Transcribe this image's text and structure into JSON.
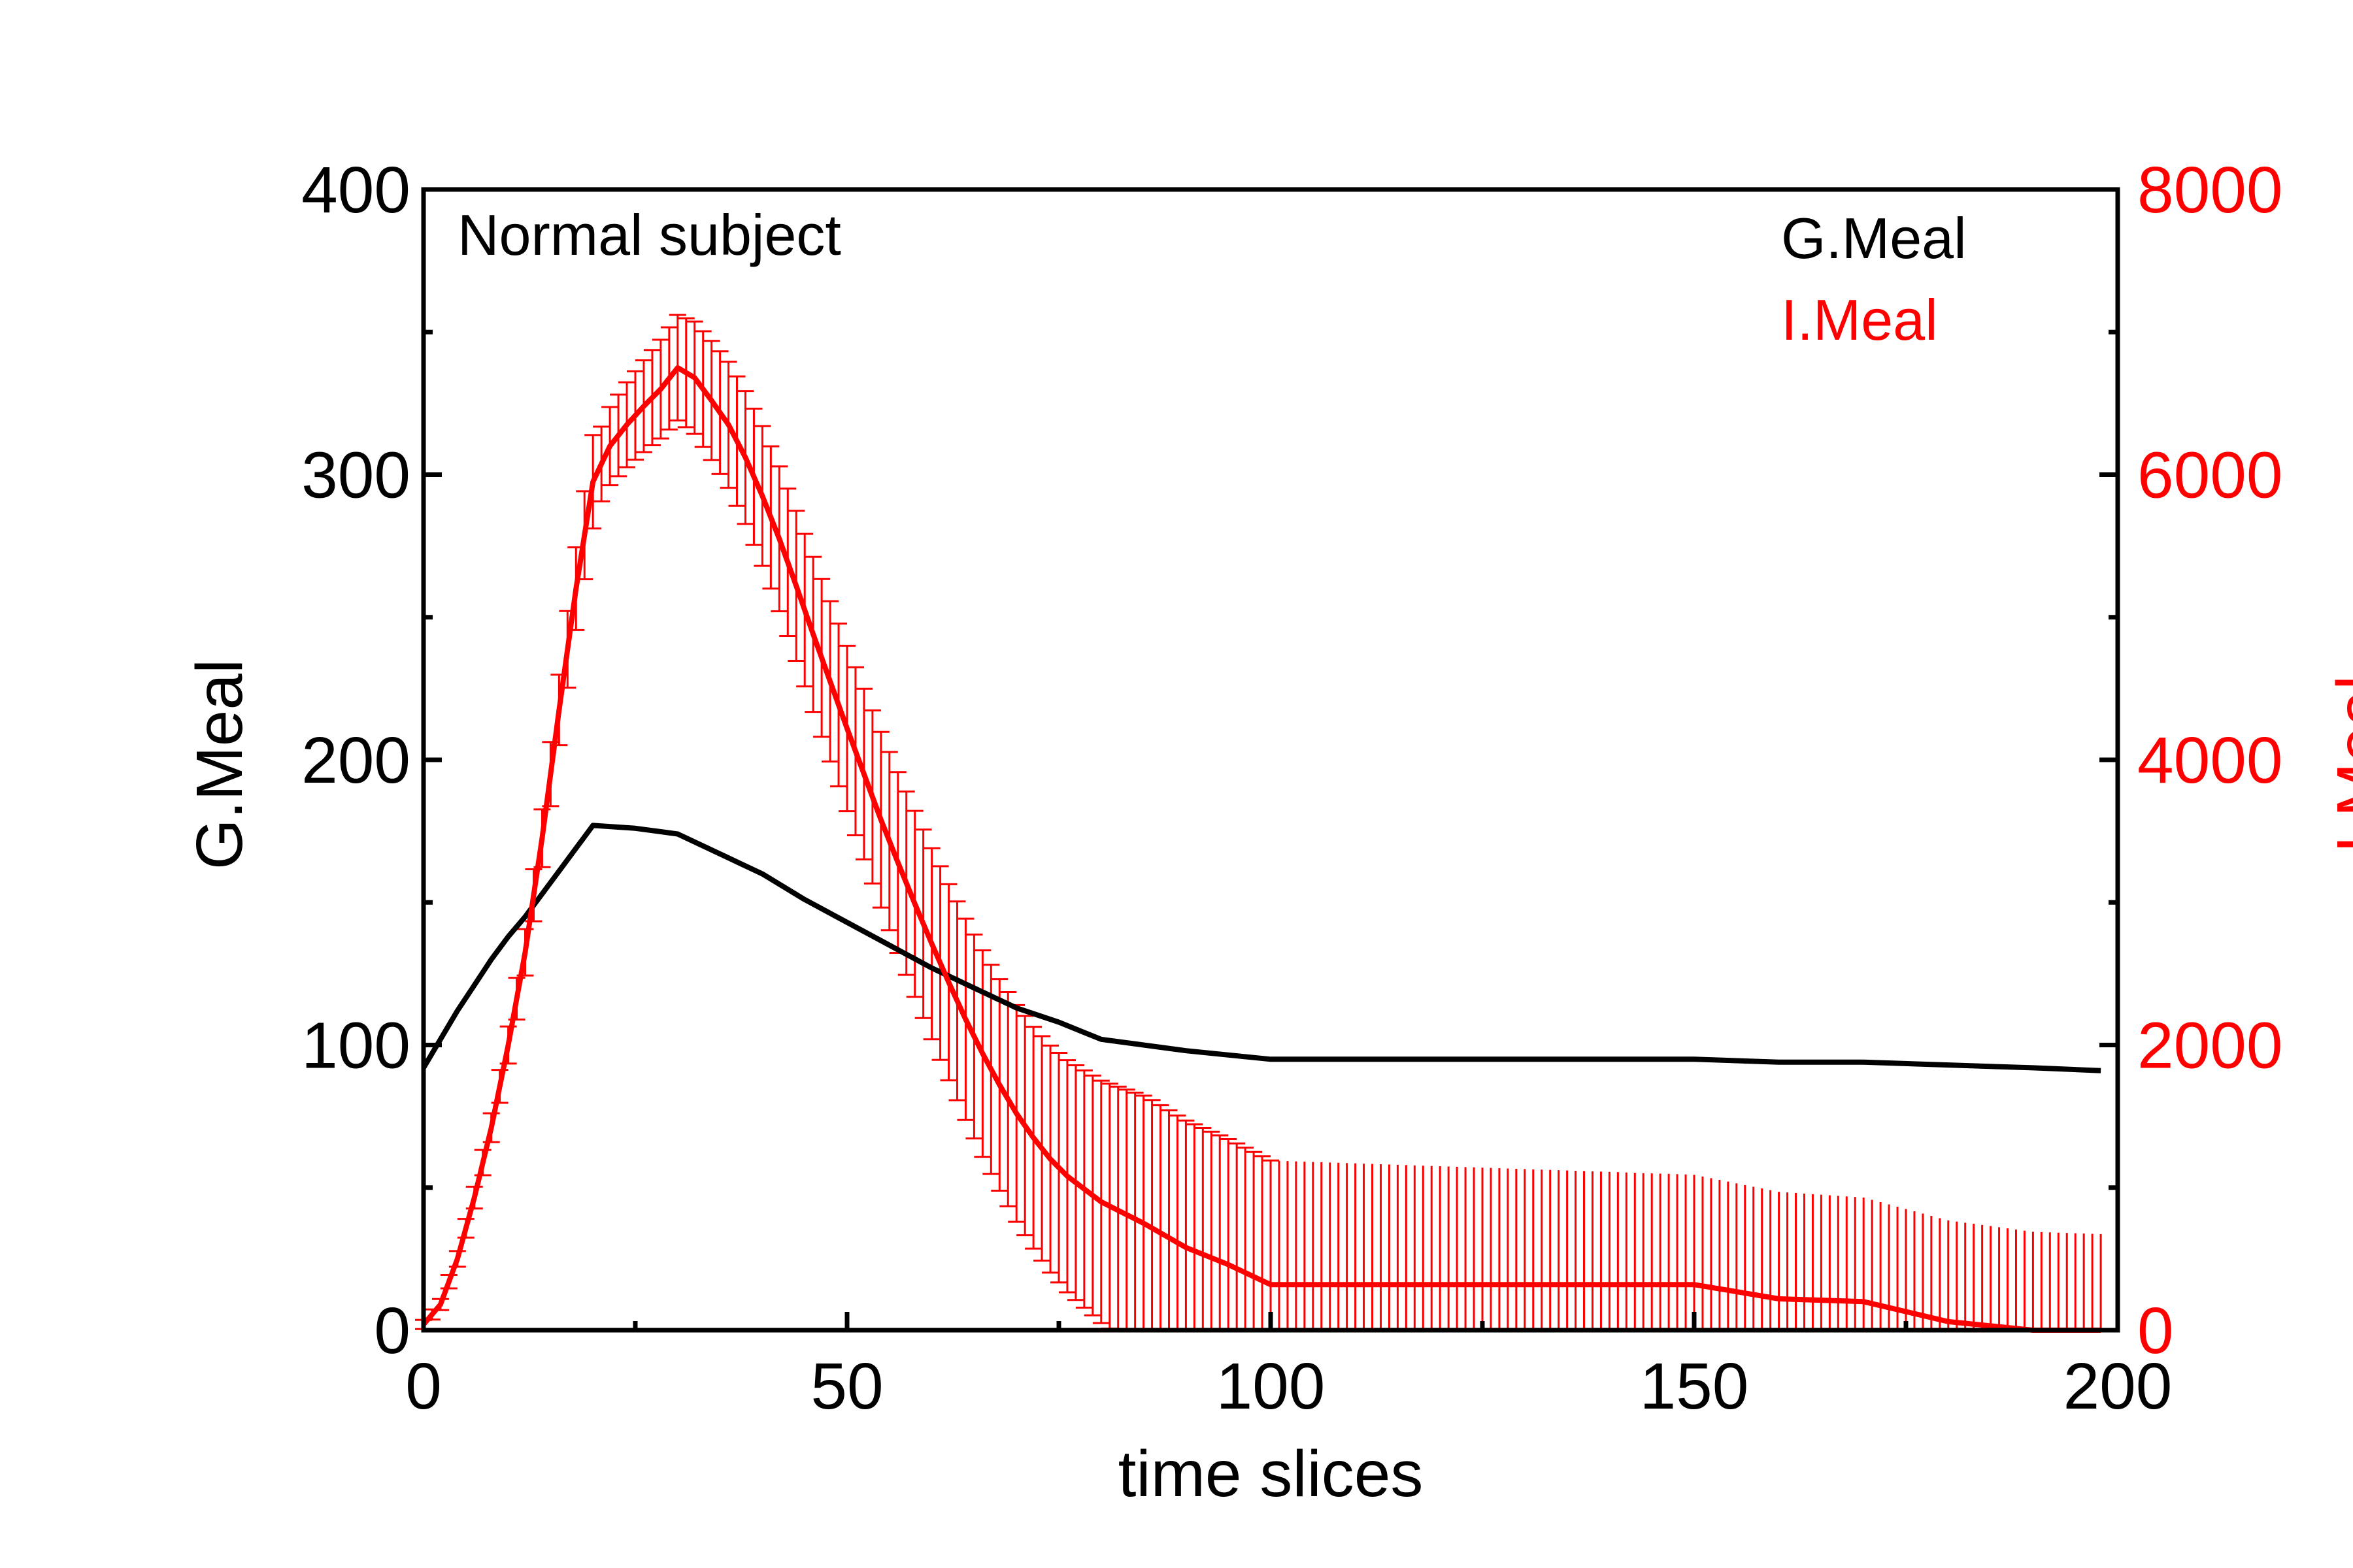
{
  "chart_data": {
    "type": "line",
    "annotation": "Normal subject",
    "xlabel": "time slices",
    "ylabel_left": "G.Meal",
    "ylabel_right": "I.Meal",
    "xlim": [
      0,
      200
    ],
    "ylim_left": [
      0,
      400
    ],
    "ylim_right": [
      0,
      8000
    ],
    "x_ticks": [
      "0",
      "50",
      "100",
      "150",
      "200"
    ],
    "y_left_ticks": [
      "0",
      "100",
      "200",
      "300",
      "400"
    ],
    "y_right_ticks": [
      "0",
      "2000",
      "4000",
      "6000",
      "8000"
    ],
    "legend_position": "top-right",
    "grid": false,
    "series": [
      {
        "name": "G.Meal",
        "axis": "left",
        "color": "#000000",
        "x": [
          0,
          2,
          4,
          6,
          8,
          10,
          12,
          14,
          16,
          18,
          20,
          25,
          30,
          35,
          40,
          45,
          50,
          55,
          60,
          65,
          70,
          75,
          80,
          90,
          100,
          110,
          120,
          130,
          140,
          150,
          160,
          170,
          180,
          190,
          198
        ],
        "y": [
          92,
          102,
          112,
          121,
          130,
          138,
          145,
          153,
          161,
          169,
          177,
          176,
          174,
          167,
          160,
          151,
          143,
          135,
          127,
          120,
          113,
          108,
          102,
          98,
          95,
          95,
          95,
          95,
          95,
          95,
          94,
          94,
          93,
          92,
          91
        ]
      },
      {
        "name": "I.Meal",
        "axis": "right",
        "color": "#ff0000",
        "x": [
          0,
          2,
          4,
          6,
          8,
          10,
          12,
          14,
          16,
          18,
          20,
          22,
          24,
          26,
          28,
          30,
          32,
          34,
          36,
          38,
          40,
          42,
          44,
          46,
          48,
          50,
          52,
          54,
          56,
          58,
          60,
          62,
          64,
          66,
          68,
          70,
          72,
          74,
          76,
          78,
          80,
          85,
          90,
          95,
          100,
          110,
          120,
          130,
          140,
          150,
          160,
          170,
          180,
          190,
          198
        ],
        "y": [
          40,
          180,
          500,
          930,
          1420,
          2000,
          2650,
          3450,
          4350,
          5200,
          5950,
          6200,
          6350,
          6480,
          6600,
          6750,
          6680,
          6520,
          6350,
          6120,
          5850,
          5550,
          5220,
          4880,
          4550,
          4220,
          3900,
          3580,
          3280,
          2990,
          2710,
          2440,
          2180,
          1940,
          1720,
          1520,
          1350,
          1200,
          1080,
          990,
          900,
          750,
          580,
          460,
          320,
          320,
          320,
          320,
          320,
          320,
          220,
          200,
          60,
          0,
          0
        ]
      }
    ]
  }
}
